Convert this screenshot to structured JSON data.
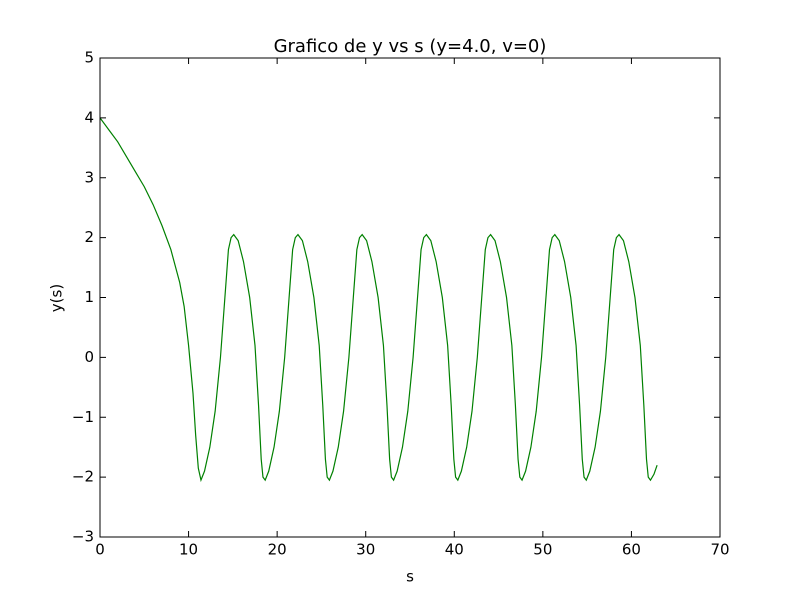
{
  "chart_data": {
    "type": "line",
    "title": "Grafico de y vs s (y=4.0, v=0)",
    "xlabel": "s",
    "ylabel": "y(s)",
    "color": "#008000",
    "x": [
      0,
      1,
      2,
      3,
      4,
      5,
      6,
      7,
      8,
      9,
      9.5,
      10,
      10.5,
      10.8,
      11.1,
      11.4,
      11.8,
      12.4,
      13.0,
      13.6,
      14.1,
      14.5,
      14.8,
      15.1,
      15.6,
      16.2,
      16.9,
      17.5,
      17.9,
      18.2,
      18.4,
      18.65,
      19.05,
      19.65,
      20.25,
      20.85,
      21.35,
      21.75,
      22.05,
      22.35,
      22.85,
      23.45,
      24.15,
      24.75,
      25.15,
      25.45,
      25.65,
      25.9,
      26.3,
      26.9,
      27.5,
      28.1,
      28.6,
      29.0,
      29.3,
      29.6,
      30.1,
      30.7,
      31.4,
      32.0,
      32.4,
      32.7,
      32.9,
      33.15,
      33.55,
      34.15,
      34.75,
      35.35,
      35.85,
      36.25,
      36.55,
      36.85,
      37.35,
      37.95,
      38.65,
      39.25,
      39.65,
      39.95,
      40.15,
      40.4,
      40.8,
      41.4,
      42.0,
      42.6,
      43.1,
      43.5,
      43.8,
      44.1,
      44.6,
      45.2,
      45.9,
      46.5,
      46.9,
      47.2,
      47.4,
      47.65,
      48.05,
      48.65,
      49.25,
      49.85,
      50.35,
      50.75,
      51.05,
      51.35,
      51.85,
      52.45,
      53.15,
      53.75,
      54.15,
      54.45,
      54.65,
      54.9,
      55.3,
      55.9,
      56.5,
      57.1,
      57.6,
      58.0,
      58.3,
      58.6,
      59.1,
      59.7,
      60.4,
      61.0,
      61.4,
      61.7,
      61.9,
      62.15,
      62.55,
      62.9
    ],
    "values": [
      4.0,
      3.8,
      3.6,
      3.35,
      3.1,
      2.85,
      2.55,
      2.2,
      1.8,
      1.25,
      0.85,
      0.2,
      -0.6,
      -1.3,
      -1.85,
      -2.05,
      -1.9,
      -1.5,
      -0.9,
      0,
      1.0,
      1.8,
      2.0,
      2.05,
      1.95,
      1.6,
      1.0,
      0.2,
      -0.8,
      -1.7,
      -2.0,
      -2.05,
      -1.9,
      -1.5,
      -0.9,
      0,
      1.0,
      1.8,
      2.0,
      2.05,
      1.95,
      1.6,
      1.0,
      0.2,
      -0.8,
      -1.7,
      -2.0,
      -2.05,
      -1.9,
      -1.5,
      -0.9,
      0,
      1.0,
      1.8,
      2.0,
      2.05,
      1.95,
      1.6,
      1.0,
      0.2,
      -0.8,
      -1.7,
      -2.0,
      -2.05,
      -1.9,
      -1.5,
      -0.9,
      0,
      1.0,
      1.8,
      2.0,
      2.05,
      1.95,
      1.6,
      1.0,
      0.2,
      -0.8,
      -1.7,
      -2.0,
      -2.05,
      -1.9,
      -1.5,
      -0.9,
      0,
      1.0,
      1.8,
      2.0,
      2.05,
      1.95,
      1.6,
      1.0,
      0.2,
      -0.8,
      -1.7,
      -2.0,
      -2.05,
      -1.9,
      -1.5,
      -0.9,
      0,
      1.0,
      1.8,
      2.0,
      2.05,
      1.95,
      1.6,
      1.0,
      0.2,
      -0.8,
      -1.7,
      -2.0,
      -2.05,
      -1.9,
      -1.5,
      -0.9,
      0,
      1.0,
      1.8,
      2.0,
      2.05,
      1.95,
      1.6,
      1.0,
      0.2,
      -0.8,
      -1.7,
      -2.0,
      -2.05,
      -1.95,
      -1.8
    ],
    "xlim": [
      0,
      70
    ],
    "xticks": [
      0,
      10,
      20,
      30,
      40,
      50,
      60,
      70
    ],
    "ylim": [
      -3,
      5
    ],
    "yticks": [
      {
        "value": -3,
        "label": "−3"
      },
      {
        "value": -2,
        "label": "−2"
      },
      {
        "value": -1,
        "label": "−1"
      },
      0,
      1,
      2,
      3,
      4,
      5
    ]
  }
}
